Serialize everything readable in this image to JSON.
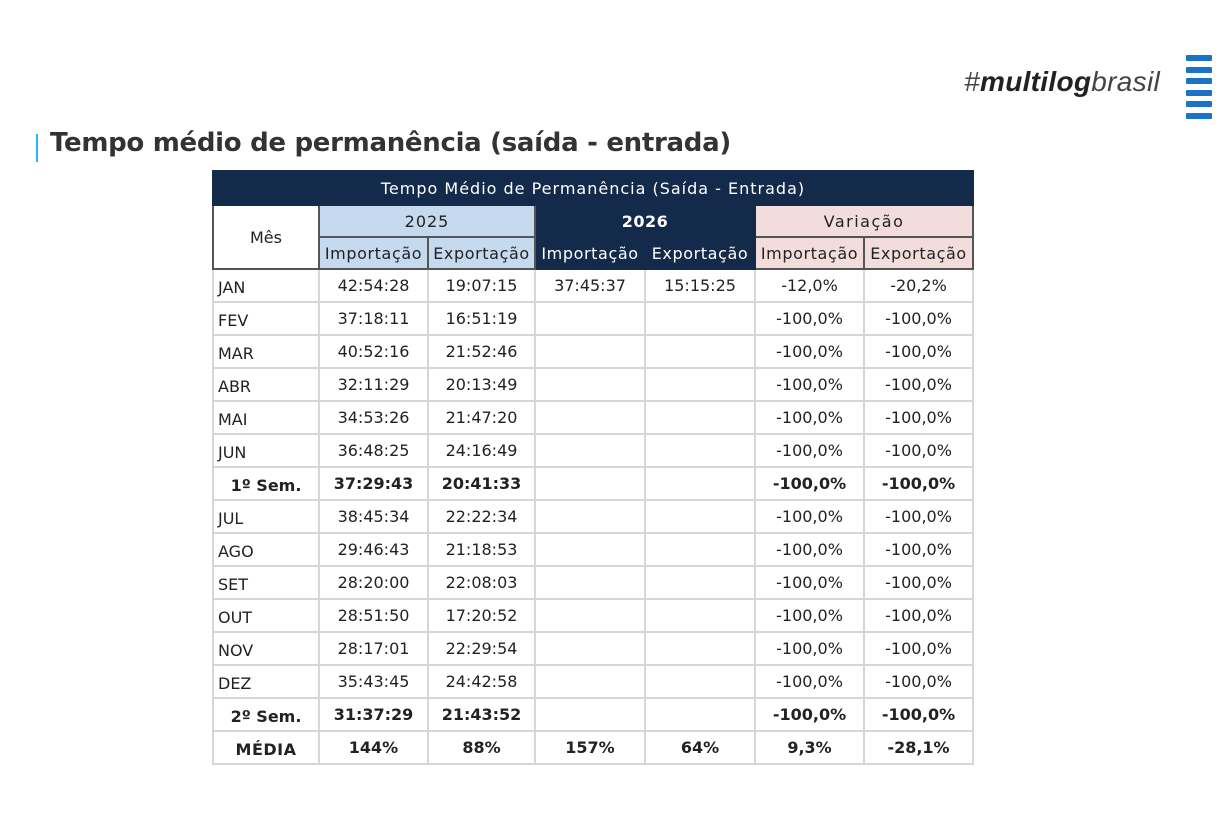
{
  "brand": {
    "hash": "#",
    "bold": "multilog",
    "rest": "brasil"
  },
  "page_title": "Tempo médio de permanência (saída - entrada)",
  "table": {
    "title": "Tempo Médio de Permanência (Saída - Entrada)",
    "month_header": "Mês",
    "groups": [
      "2025",
      "2026",
      "Variação"
    ],
    "sub_headers": [
      "Importação",
      "Exportação",
      "Importação",
      "Exportação",
      "Importação",
      "Exportação"
    ],
    "rows": [
      {
        "mes": "JAN",
        "i25": "42:54:28",
        "e25": "19:07:15",
        "i26": "37:45:37",
        "e26": "15:15:25",
        "vi": "-12,0%",
        "ve": "-20,2%"
      },
      {
        "mes": "FEV",
        "i25": "37:18:11",
        "e25": "16:51:19",
        "i26": "",
        "e26": "",
        "vi": "-100,0%",
        "ve": "-100,0%"
      },
      {
        "mes": "MAR",
        "i25": "40:52:16",
        "e25": "21:52:46",
        "i26": "",
        "e26": "",
        "vi": "-100,0%",
        "ve": "-100,0%"
      },
      {
        "mes": "ABR",
        "i25": "32:11:29",
        "e25": "20:13:49",
        "i26": "",
        "e26": "",
        "vi": "-100,0%",
        "ve": "-100,0%"
      },
      {
        "mes": "MAI",
        "i25": "34:53:26",
        "e25": "21:47:20",
        "i26": "",
        "e26": "",
        "vi": "-100,0%",
        "ve": "-100,0%"
      },
      {
        "mes": "JUN",
        "i25": "36:48:25",
        "e25": "24:16:49",
        "i26": "",
        "e26": "",
        "vi": "-100,0%",
        "ve": "-100,0%"
      },
      {
        "mes": "1º Sem.",
        "i25": "37:29:43",
        "e25": "20:41:33",
        "i26": "",
        "e26": "",
        "vi": "-100,0%",
        "ve": "-100,0%"
      },
      {
        "mes": "JUL",
        "i25": "38:45:34",
        "e25": "22:22:34",
        "i26": "",
        "e26": "",
        "vi": "-100,0%",
        "ve": "-100,0%"
      },
      {
        "mes": "AGO",
        "i25": "29:46:43",
        "e25": "21:18:53",
        "i26": "",
        "e26": "",
        "vi": "-100,0%",
        "ve": "-100,0%"
      },
      {
        "mes": "SET",
        "i25": "28:20:00",
        "e25": "22:08:03",
        "i26": "",
        "e26": "",
        "vi": "-100,0%",
        "ve": "-100,0%"
      },
      {
        "mes": "OUT",
        "i25": "28:51:50",
        "e25": "17:20:52",
        "i26": "",
        "e26": "",
        "vi": "-100,0%",
        "ve": "-100,0%"
      },
      {
        "mes": "NOV",
        "i25": "28:17:01",
        "e25": "22:29:54",
        "i26": "",
        "e26": "",
        "vi": "-100,0%",
        "ve": "-100,0%"
      },
      {
        "mes": "DEZ",
        "i25": "35:43:45",
        "e25": "24:42:58",
        "i26": "",
        "e26": "",
        "vi": "-100,0%",
        "ve": "-100,0%"
      },
      {
        "mes": "2º Sem.",
        "i25": "31:37:29",
        "e25": "21:43:52",
        "i26": "",
        "e26": "",
        "vi": "-100,0%",
        "ve": "-100,0%"
      },
      {
        "mes": "MÉDIA",
        "i25": "144%",
        "e25": "88%",
        "i26": "157%",
        "e26": "64%",
        "vi": "9,3%",
        "ve": "-28,1%"
      }
    ]
  },
  "colors": {
    "header_navy": "#132a4a",
    "header_2025": "#c5d9ef",
    "header_variacao": "#f3dcdc",
    "brand_blue": "#1a73c4",
    "title_accent": "#29b6f6"
  }
}
